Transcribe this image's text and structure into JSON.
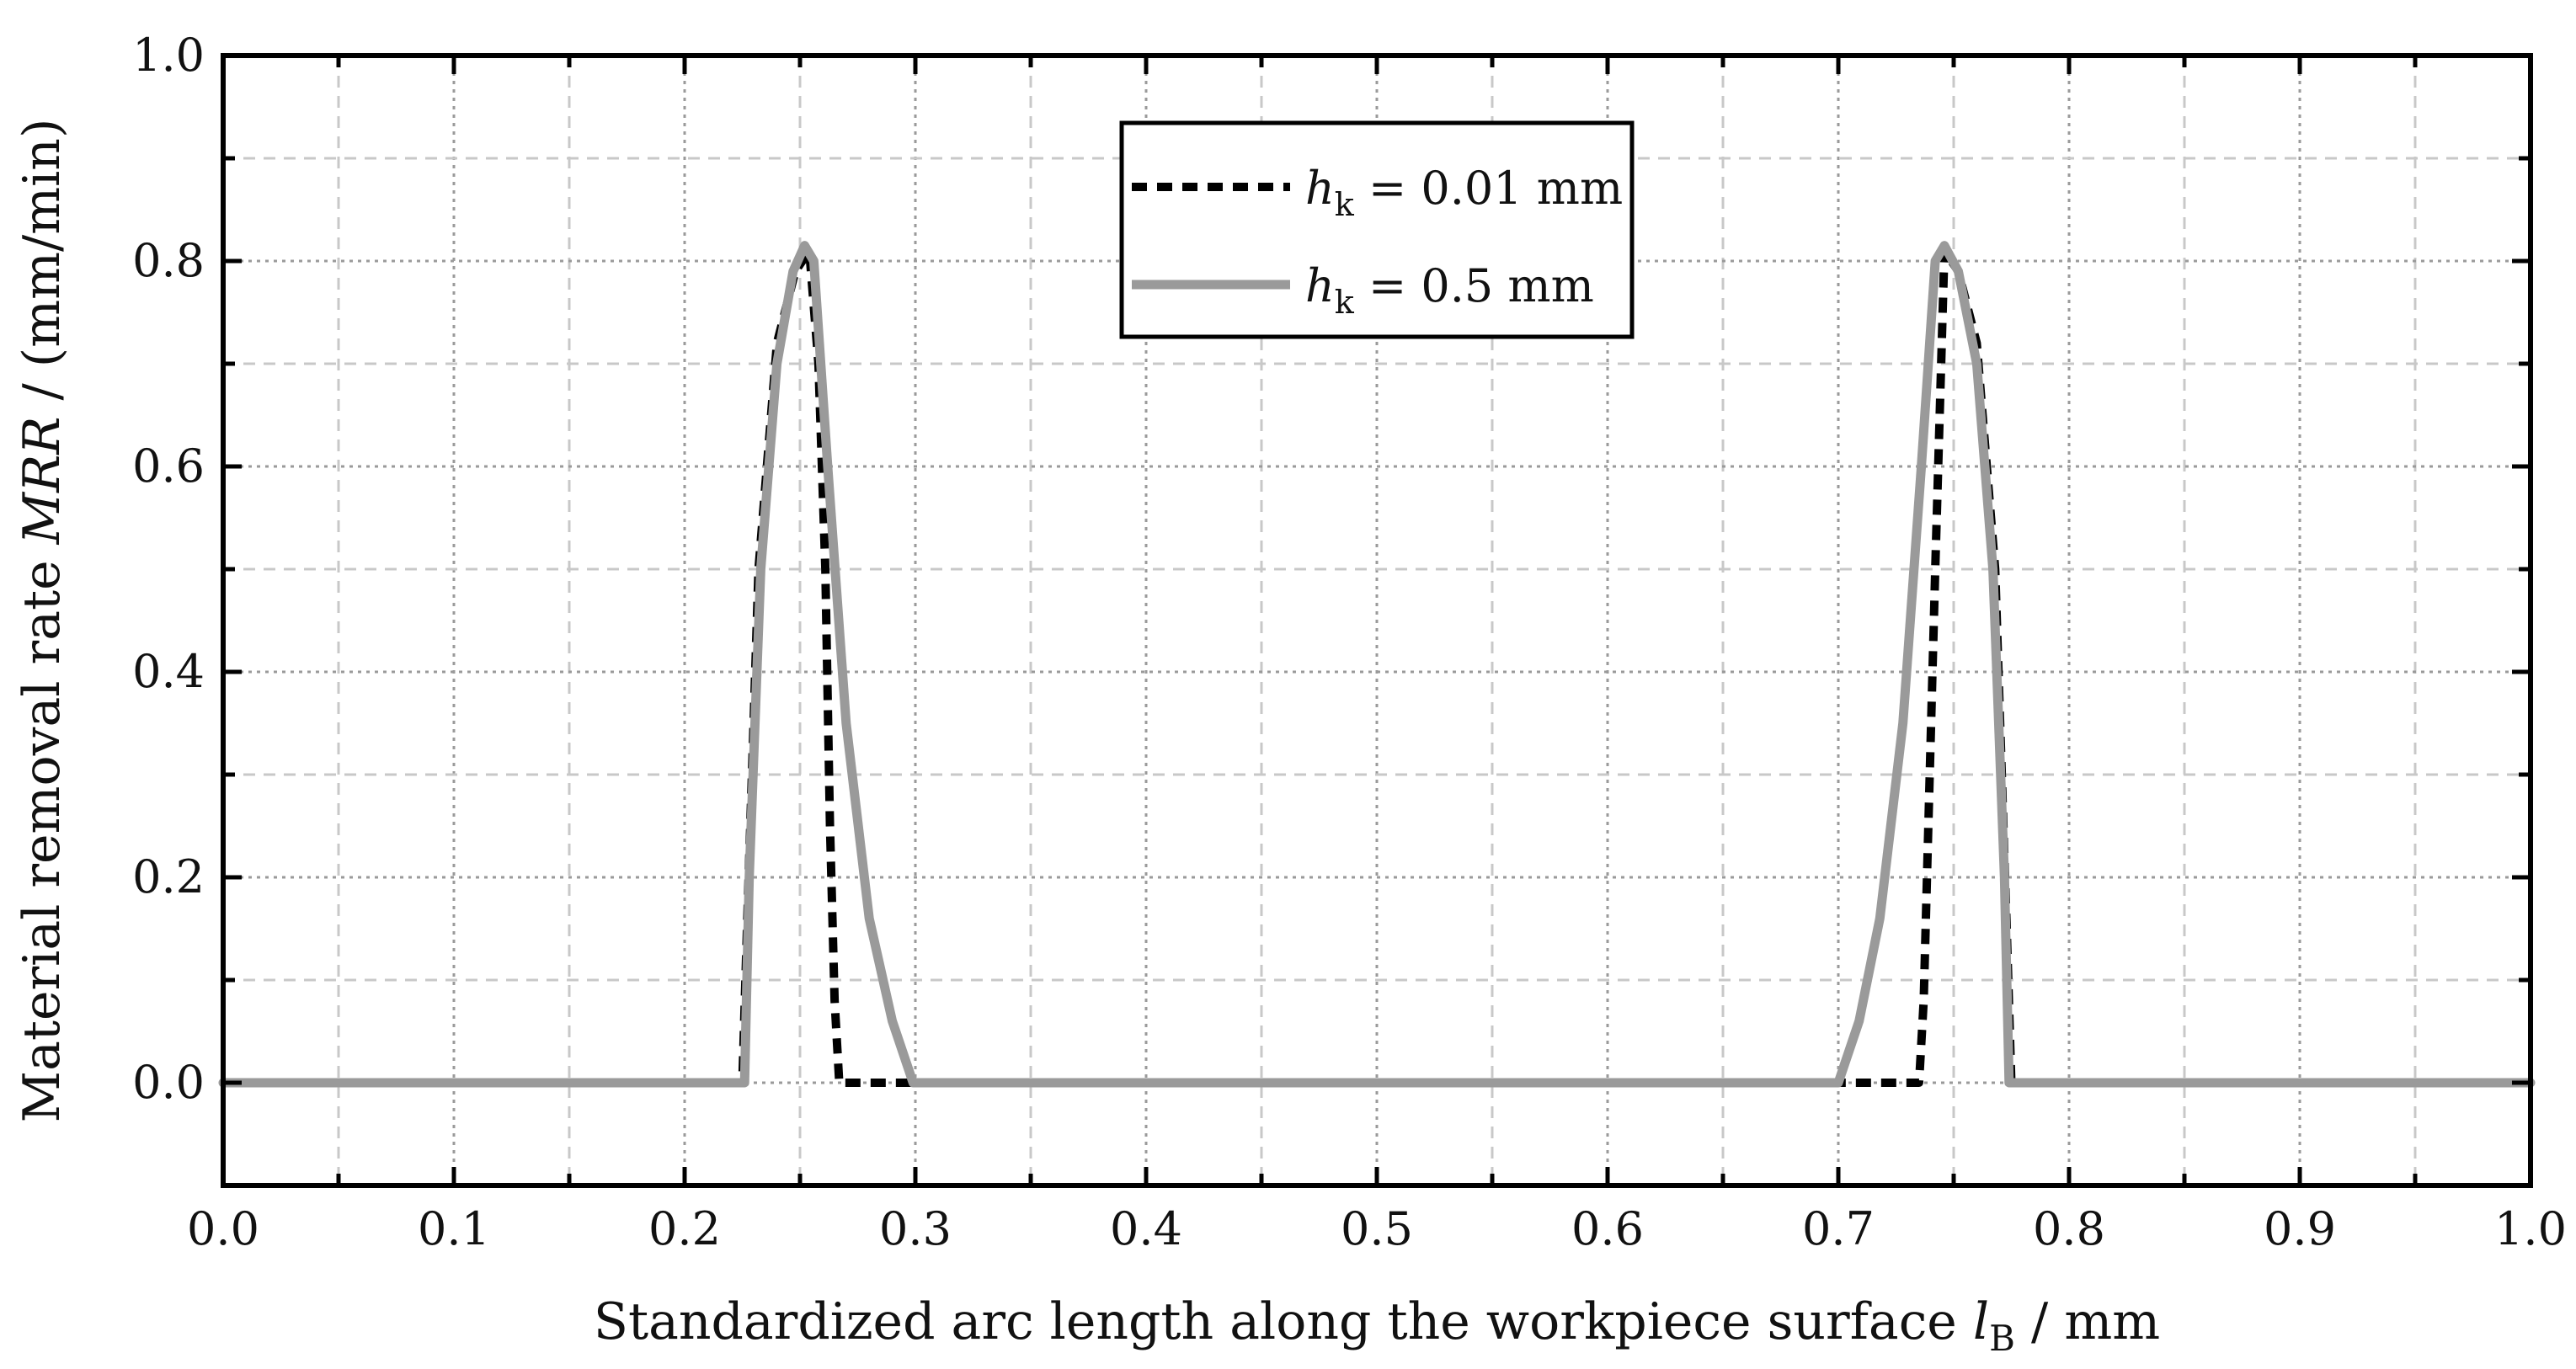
{
  "chart_data": {
    "type": "line",
    "xlabel": {
      "prefix": "Standardized arc length along the workpiece surface ",
      "var": "l",
      "sub": "B",
      "suffix": " / mm"
    },
    "ylabel": {
      "prefix": "Material removal rate ",
      "var": "MRR",
      "suffix": " / (mm/min)"
    },
    "xlim": [
      0.0,
      1.0
    ],
    "ylim": [
      -0.1,
      1.0
    ],
    "x_ticks": [
      "0.0",
      "0.1",
      "0.2",
      "0.3",
      "0.4",
      "0.5",
      "0.6",
      "0.7",
      "0.8",
      "0.9",
      "1.0"
    ],
    "y_ticks": [
      "0.0",
      "0.2",
      "0.4",
      "0.6",
      "0.8",
      "1.0"
    ],
    "grid": true,
    "legend_position": "top-center",
    "series": [
      {
        "name_var": "h",
        "name_sub": "k",
        "name_rest": " = 0.01 mm",
        "color": "#000000",
        "style": "dashed",
        "x": [
          0.0,
          0.225,
          0.227,
          0.232,
          0.24,
          0.248,
          0.254,
          0.258,
          0.261,
          0.263,
          0.265,
          0.267,
          0.3,
          0.7,
          0.735,
          0.737,
          0.739,
          0.742,
          0.746,
          0.752,
          0.76,
          0.768,
          0.773,
          0.775,
          1.0
        ],
        "y": [
          0.0,
          0.0,
          0.15,
          0.5,
          0.72,
          0.79,
          0.81,
          0.7,
          0.5,
          0.25,
          0.08,
          0.0,
          0.0,
          0.0,
          0.0,
          0.08,
          0.25,
          0.5,
          0.81,
          0.79,
          0.72,
          0.5,
          0.15,
          0.0,
          0.0
        ]
      },
      {
        "name_var": "h",
        "name_sub": "k",
        "name_rest": " = 0.5 mm",
        "color": "#9a9a9a",
        "style": "solid",
        "x": [
          0.0,
          0.226,
          0.228,
          0.233,
          0.24,
          0.247,
          0.252,
          0.256,
          0.262,
          0.27,
          0.28,
          0.29,
          0.299,
          0.7,
          0.709,
          0.718,
          0.728,
          0.736,
          0.742,
          0.746,
          0.752,
          0.76,
          0.767,
          0.772,
          0.774,
          1.0
        ],
        "y": [
          0.0,
          0.0,
          0.2,
          0.5,
          0.7,
          0.79,
          0.815,
          0.8,
          0.6,
          0.35,
          0.16,
          0.06,
          0.0,
          0.0,
          0.06,
          0.16,
          0.35,
          0.6,
          0.8,
          0.815,
          0.79,
          0.7,
          0.5,
          0.2,
          0.0,
          0.0
        ]
      }
    ]
  }
}
